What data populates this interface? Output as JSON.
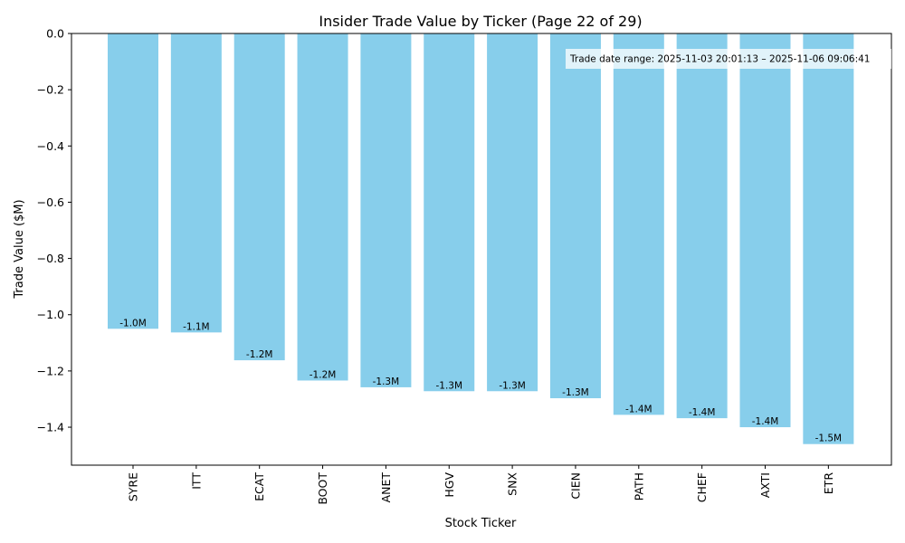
{
  "chart_data": {
    "type": "bar",
    "title": "Insider Trade Value by Ticker (Page 22 of 29)",
    "xlabel": "Stock Ticker",
    "ylabel": "Trade Value ($M)",
    "categories": [
      "SYRE",
      "ITT",
      "ECAT",
      "BOOT",
      "ANET",
      "HGV",
      "SNX",
      "CIEN",
      "PATH",
      "CHEF",
      "AXTI",
      "ETR"
    ],
    "values": [
      -1.05,
      -1.063,
      -1.162,
      -1.234,
      -1.258,
      -1.272,
      -1.272,
      -1.297,
      -1.356,
      -1.368,
      -1.4,
      -1.46
    ],
    "data_labels": [
      "-1.0M",
      "-1.1M",
      "-1.2M",
      "-1.2M",
      "-1.3M",
      "-1.3M",
      "-1.3M",
      "-1.3M",
      "-1.4M",
      "-1.4M",
      "-1.4M",
      "-1.5M"
    ],
    "ylim": [
      -1.535,
      0
    ],
    "yticks": [
      0.0,
      -0.2,
      -0.4,
      -0.6,
      -0.8,
      -1.0,
      -1.2,
      -1.4
    ],
    "ytick_labels": [
      "0.0",
      "−0.2",
      "−0.4",
      "−0.6",
      "−0.8",
      "−1.0",
      "−1.2",
      "−1.4"
    ],
    "bar_color": "#87ceeb",
    "grid": false,
    "annotation": "Trade date range: 2025-11-03 20:01:13 – 2025-11-06 09:06:41"
  }
}
